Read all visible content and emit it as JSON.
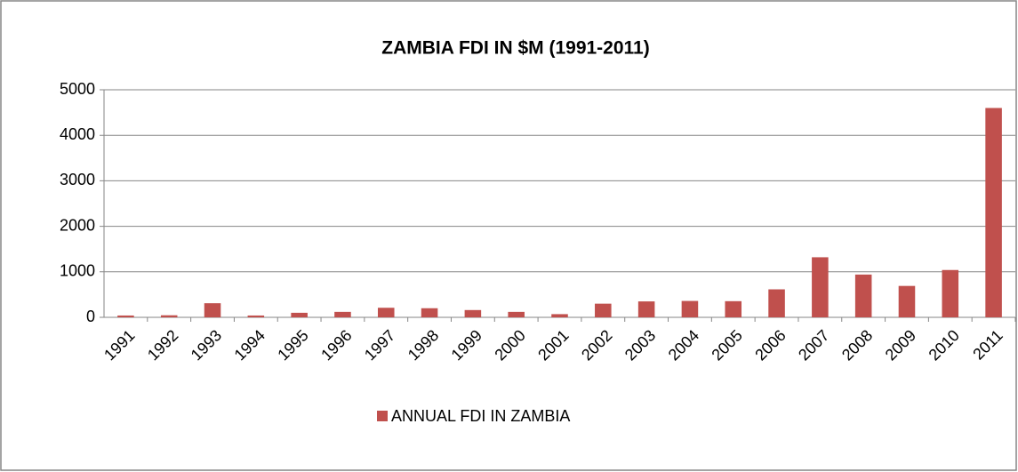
{
  "chart_data": {
    "type": "bar",
    "title": "ZAMBIA FDI IN $M (1991-2011)",
    "categories": [
      "1991",
      "1992",
      "1993",
      "1994",
      "1995",
      "1996",
      "1997",
      "1998",
      "1999",
      "2000",
      "2001",
      "2002",
      "2003",
      "2004",
      "2005",
      "2006",
      "2007",
      "2008",
      "2009",
      "2010",
      "2011"
    ],
    "series": [
      {
        "name": "ANNUAL FDI IN ZAMBIA",
        "color": "#c0504d",
        "values": [
          40,
          45,
          310,
          40,
          100,
          120,
          210,
          200,
          160,
          120,
          70,
          300,
          350,
          360,
          355,
          615,
          1320,
          940,
          690,
          1040,
          4600
        ]
      }
    ],
    "ylim": [
      0,
      5000
    ],
    "yticks": [
      0,
      1000,
      2000,
      3000,
      4000,
      5000
    ],
    "grid": true,
    "legend": "bottom"
  }
}
